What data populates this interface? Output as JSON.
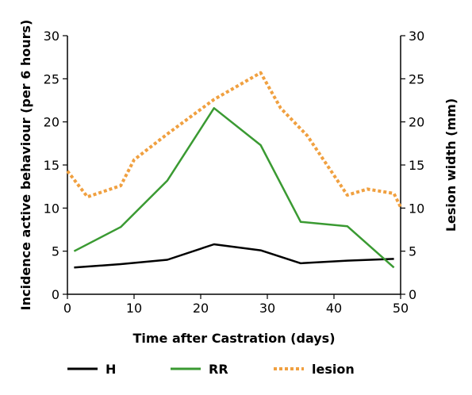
{
  "chart_data": {
    "type": "line",
    "xlabel": "Time after Castration (days)",
    "ylabel": "Incidence active behaviour (per 6 hours)",
    "y2label": "Lesion width (mm)",
    "xlim": [
      0,
      50
    ],
    "ylim": [
      0,
      30
    ],
    "y2lim": [
      0,
      30
    ],
    "x_ticks": [
      0,
      10,
      20,
      30,
      40,
      50
    ],
    "y_ticks": [
      0,
      5,
      10,
      15,
      20,
      25,
      30
    ],
    "y2_ticks": [
      0,
      5,
      10,
      15,
      20,
      25,
      30
    ],
    "grid": false,
    "legend_position": "bottom",
    "series": [
      {
        "name": "H",
        "axis": "left",
        "color": "#000000",
        "style": "solid",
        "x": [
          1,
          8,
          15,
          22,
          29,
          35,
          42,
          49
        ],
        "y": [
          3.1,
          3.5,
          4.0,
          5.8,
          5.1,
          3.6,
          3.9,
          4.1
        ]
      },
      {
        "name": "RR",
        "axis": "left",
        "color": "#3a9a32",
        "style": "solid",
        "x": [
          1,
          8,
          15,
          22,
          29,
          35,
          42,
          49
        ],
        "y": [
          5.0,
          7.8,
          13.2,
          21.6,
          17.3,
          8.4,
          7.9,
          3.1
        ]
      },
      {
        "name": "lesion",
        "axis": "right",
        "color": "#f0a040",
        "style": "dotted",
        "x": [
          0,
          3,
          8,
          10,
          15,
          22,
          29,
          32,
          36,
          42,
          45,
          49,
          50
        ],
        "y": [
          14.3,
          11.3,
          12.6,
          15.6,
          18.6,
          22.6,
          25.7,
          21.6,
          18.4,
          11.5,
          12.2,
          11.7,
          10.1
        ]
      }
    ]
  }
}
